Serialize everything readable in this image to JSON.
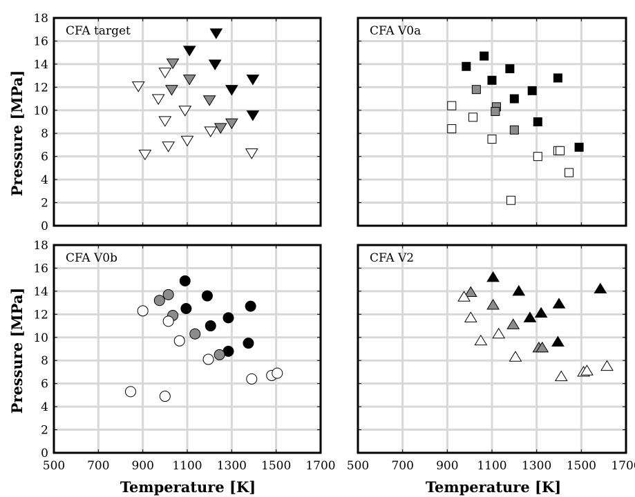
{
  "chart_data": [
    {
      "type": "scatter",
      "title": "CFA target",
      "xlim": [
        500,
        1700
      ],
      "ylim": [
        0,
        18
      ],
      "xticks": [
        500,
        700,
        900,
        1100,
        1300,
        1500,
        1700
      ],
      "yticks": [
        0,
        2,
        4,
        6,
        8,
        10,
        12,
        14,
        16,
        18
      ],
      "grid": true,
      "marker": "triangle-down",
      "series": [
        {
          "color": "#000000",
          "points": [
            [
              1230,
              16.7
            ],
            [
              1110,
              15.2
            ],
            [
              1225,
              14.0
            ],
            [
              1300,
              11.8
            ],
            [
              1395,
              12.7
            ],
            [
              1395,
              9.6
            ]
          ]
        },
        {
          "color": "#8c8c8c",
          "points": [
            [
              1035,
              14.1
            ],
            [
              1110,
              12.7
            ],
            [
              1030,
              11.8
            ],
            [
              1200,
              10.9
            ],
            [
              1300,
              8.9
            ],
            [
              1250,
              8.5
            ]
          ]
        },
        {
          "color": "#ffffff",
          "points": [
            [
              880,
              12.1
            ],
            [
              970,
              11.0
            ],
            [
              1000,
              13.3
            ],
            [
              1090,
              10.0
            ],
            [
              1000,
              9.1
            ],
            [
              1205,
              8.2
            ],
            [
              1100,
              7.4
            ],
            [
              1015,
              6.9
            ],
            [
              910,
              6.2
            ],
            [
              1390,
              6.3
            ]
          ]
        }
      ]
    },
    {
      "type": "scatter",
      "title": "CFA V0a",
      "xlim": [
        500,
        1700
      ],
      "ylim": [
        0,
        18
      ],
      "xticks": [
        500,
        700,
        900,
        1100,
        1300,
        1500,
        1700
      ],
      "yticks": [
        0,
        2,
        4,
        6,
        8,
        10,
        12,
        14,
        16,
        18
      ],
      "grid": true,
      "marker": "square",
      "series": [
        {
          "color": "#000000",
          "points": [
            [
              1065,
              14.7
            ],
            [
              985,
              13.8
            ],
            [
              1180,
              13.6
            ],
            [
              1100,
              12.6
            ],
            [
              1395,
              12.8
            ],
            [
              1280,
              11.7
            ],
            [
              1200,
              11.0
            ],
            [
              1305,
              9.0
            ],
            [
              1490,
              6.8
            ]
          ]
        },
        {
          "color": "#8c8c8c",
          "points": [
            [
              1030,
              11.8
            ],
            [
              1120,
              10.3
            ],
            [
              1115,
              9.9
            ],
            [
              1200,
              8.3
            ]
          ]
        },
        {
          "color": "#ffffff",
          "points": [
            [
              920,
              10.4
            ],
            [
              920,
              8.4
            ],
            [
              1015,
              9.4
            ],
            [
              1100,
              7.5
            ],
            [
              1305,
              6.0
            ],
            [
              1395,
              6.5
            ],
            [
              1405,
              6.5
            ],
            [
              1445,
              4.6
            ],
            [
              1185,
              2.2
            ]
          ]
        }
      ]
    },
    {
      "type": "scatter",
      "title": "CFA V0b",
      "xlim": [
        500,
        1700
      ],
      "ylim": [
        0,
        18
      ],
      "xticks": [
        500,
        700,
        900,
        1100,
        1300,
        1500,
        1700
      ],
      "yticks": [
        0,
        2,
        4,
        6,
        8,
        10,
        12,
        14,
        16,
        18
      ],
      "grid": true,
      "marker": "circle",
      "series": [
        {
          "color": "#000000",
          "points": [
            [
              1090,
              14.9
            ],
            [
              1190,
              13.6
            ],
            [
              1095,
              12.5
            ],
            [
              1385,
              12.7
            ],
            [
              1285,
              11.7
            ],
            [
              1205,
              11.0
            ],
            [
              1285,
              8.8
            ],
            [
              1375,
              9.5
            ]
          ]
        },
        {
          "color": "#8c8c8c",
          "points": [
            [
              975,
              13.2
            ],
            [
              1015,
              13.7
            ],
            [
              1035,
              11.9
            ],
            [
              1135,
              10.3
            ],
            [
              1245,
              8.5
            ]
          ]
        },
        {
          "color": "#ffffff",
          "points": [
            [
              900,
              12.3
            ],
            [
              1015,
              11.4
            ],
            [
              1065,
              9.7
            ],
            [
              1195,
              8.1
            ],
            [
              1390,
              6.4
            ],
            [
              1480,
              6.7
            ],
            [
              1505,
              6.9
            ],
            [
              845,
              5.3
            ],
            [
              1000,
              4.9
            ]
          ]
        }
      ]
    },
    {
      "type": "scatter",
      "title": "CFA V2",
      "xlim": [
        500,
        1700
      ],
      "ylim": [
        0,
        18
      ],
      "xticks": [
        500,
        700,
        900,
        1100,
        1300,
        1500,
        1700
      ],
      "yticks": [
        0,
        2,
        4,
        6,
        8,
        10,
        12,
        14,
        16,
        18
      ],
      "grid": true,
      "marker": "triangle-up",
      "series": [
        {
          "color": "#000000",
          "points": [
            [
              1105,
              15.2
            ],
            [
              1220,
              14.0
            ],
            [
              1585,
              14.2
            ],
            [
              1400,
              12.9
            ],
            [
              1320,
              12.1
            ],
            [
              1270,
              11.7
            ],
            [
              1395,
              9.6
            ]
          ]
        },
        {
          "color": "#8c8c8c",
          "points": [
            [
              1005,
              13.9
            ],
            [
              1105,
              12.8
            ],
            [
              1195,
              11.1
            ],
            [
              1310,
              9.1
            ],
            [
              1325,
              9.1
            ]
          ]
        },
        {
          "color": "#ffffff",
          "points": [
            [
              975,
              13.5
            ],
            [
              1005,
              11.7
            ],
            [
              1050,
              9.7
            ],
            [
              1130,
              10.3
            ],
            [
              1205,
              8.3
            ],
            [
              1410,
              6.6
            ],
            [
              1510,
              7.0
            ],
            [
              1525,
              7.1
            ],
            [
              1615,
              7.5
            ]
          ]
        }
      ]
    }
  ],
  "axes": {
    "ylabel": "Pressure [MPa]",
    "xlabel": "Temperature [K]"
  }
}
